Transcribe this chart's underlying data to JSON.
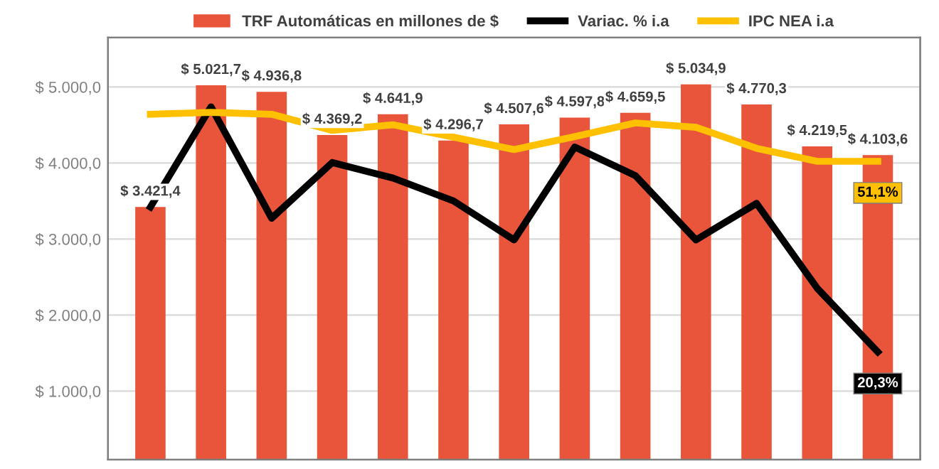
{
  "chart_data": {
    "type": "bar",
    "categories": [
      null,
      null,
      null,
      null,
      null,
      null,
      null,
      null,
      null,
      null,
      null,
      null,
      null
    ],
    "ylim": [
      100,
      5650
    ],
    "yticks": [
      {
        "value": 1000,
        "label": "$ 1.000,0"
      },
      {
        "value": 2000,
        "label": "$ 2.000,0"
      },
      {
        "value": 3000,
        "label": "$ 3.000,0"
      },
      {
        "value": 4000,
        "label": "$ 4.000,0"
      },
      {
        "value": 5000,
        "label": "$ 5.000,0"
      }
    ],
    "y2lim": [
      2.9,
      71.1
    ],
    "tick_labels": "y",
    "grid": "y",
    "legend": "top",
    "series": [
      {
        "name": "TRF Automáticas en millones de $",
        "color": "#e8553a",
        "values": [
          3421.4,
          5021.7,
          4936.8,
          4369.2,
          4641.9,
          4296.7,
          4507.6,
          4597.8,
          4659.5,
          5034.9,
          4770.3,
          4219.5,
          4103.6
        ],
        "value_labels": [
          "$ 3.421,4",
          "$ 5.021,7",
          "$ 4.936,8",
          "$ 4.369,2",
          "$ 4.641,9",
          "$ 4.296,7",
          "$ 4.507,6",
          "$ 4.597,8",
          "$ 4.659,5",
          "$ 5.034,9",
          "$ 4.770,3",
          "$ 4.219,5",
          "$ 4.103,6"
        ]
      },
      {
        "name": "Variac. % i.a",
        "type": "line",
        "axis": "y2",
        "color": "#000000",
        "values": [
          43.7,
          59.9,
          41.9,
          50.9,
          48.4,
          44.7,
          38.4,
          53.4,
          48.8,
          38.4,
          44.3,
          30.6,
          20.3
        ],
        "value_labels": [
          null,
          null,
          null,
          null,
          null,
          null,
          null,
          null,
          null,
          null,
          null,
          null,
          "20,3%"
        ]
      },
      {
        "name": "IPC NEA i.a",
        "type": "line",
        "axis": "y2",
        "color": "#ffc000",
        "values": [
          58.7,
          59.0,
          58.7,
          56.1,
          57.0,
          55.0,
          53.0,
          55.1,
          57.3,
          56.6,
          53.2,
          51.1,
          51.1
        ],
        "value_labels": [
          null,
          null,
          null,
          null,
          null,
          null,
          null,
          null,
          null,
          null,
          null,
          null,
          "51,1%"
        ]
      }
    ]
  }
}
